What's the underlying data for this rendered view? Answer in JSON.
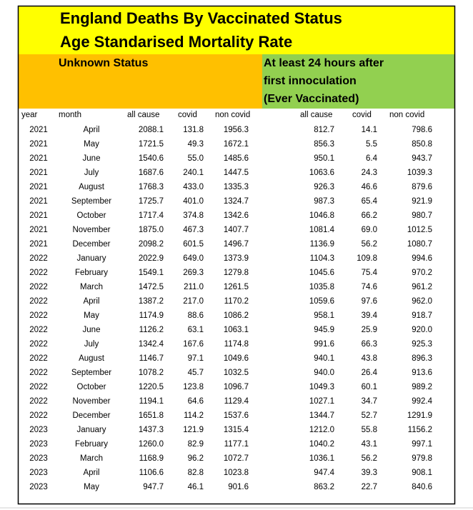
{
  "header": {
    "title": [
      "England Deaths By Vaccinated Status",
      "Age Standarised Mortality Rate"
    ]
  },
  "sections": [
    {
      "lines": [
        "Unknown Status"
      ]
    },
    {
      "lines": [
        "At least 24 hours after",
        "first innoculation",
        "(Ever Vaccinated)"
      ]
    }
  ],
  "table": {
    "columns": [
      "year",
      "month",
      "all cause",
      "covid",
      "non covid",
      "all cause",
      "covid",
      "non covid"
    ],
    "rows": [
      [
        "2021",
        "April",
        "2088.1",
        "131.8",
        "1956.3",
        "812.7",
        "14.1",
        "798.6"
      ],
      [
        "2021",
        "May",
        "1721.5",
        "49.3",
        "1672.1",
        "856.3",
        "5.5",
        "850.8"
      ],
      [
        "2021",
        "June",
        "1540.6",
        "55.0",
        "1485.6",
        "950.1",
        "6.4",
        "943.7"
      ],
      [
        "2021",
        "July",
        "1687.6",
        "240.1",
        "1447.5",
        "1063.6",
        "24.3",
        "1039.3"
      ],
      [
        "2021",
        "August",
        "1768.3",
        "433.0",
        "1335.3",
        "926.3",
        "46.6",
        "879.6"
      ],
      [
        "2021",
        "September",
        "1725.7",
        "401.0",
        "1324.7",
        "987.3",
        "65.4",
        "921.9"
      ],
      [
        "2021",
        "October",
        "1717.4",
        "374.8",
        "1342.6",
        "1046.8",
        "66.2",
        "980.7"
      ],
      [
        "2021",
        "November",
        "1875.0",
        "467.3",
        "1407.7",
        "1081.4",
        "69.0",
        "1012.5"
      ],
      [
        "2021",
        "December",
        "2098.2",
        "601.5",
        "1496.7",
        "1136.9",
        "56.2",
        "1080.7"
      ],
      [
        "2022",
        "January",
        "2022.9",
        "649.0",
        "1373.9",
        "1104.3",
        "109.8",
        "994.6"
      ],
      [
        "2022",
        "February",
        "1549.1",
        "269.3",
        "1279.8",
        "1045.6",
        "75.4",
        "970.2"
      ],
      [
        "2022",
        "March",
        "1472.5",
        "211.0",
        "1261.5",
        "1035.8",
        "74.6",
        "961.2"
      ],
      [
        "2022",
        "April",
        "1387.2",
        "217.0",
        "1170.2",
        "1059.6",
        "97.6",
        "962.0"
      ],
      [
        "2022",
        "May",
        "1174.9",
        "88.6",
        "1086.2",
        "958.1",
        "39.4",
        "918.7"
      ],
      [
        "2022",
        "June",
        "1126.2",
        "63.1",
        "1063.1",
        "945.9",
        "25.9",
        "920.0"
      ],
      [
        "2022",
        "July",
        "1342.4",
        "167.6",
        "1174.8",
        "991.6",
        "66.3",
        "925.3"
      ],
      [
        "2022",
        "August",
        "1146.7",
        "97.1",
        "1049.6",
        "940.1",
        "43.8",
        "896.3"
      ],
      [
        "2022",
        "September",
        "1078.2",
        "45.7",
        "1032.5",
        "940.0",
        "26.4",
        "913.6"
      ],
      [
        "2022",
        "October",
        "1220.5",
        "123.8",
        "1096.7",
        "1049.3",
        "60.1",
        "989.2"
      ],
      [
        "2022",
        "November",
        "1194.1",
        "64.6",
        "1129.4",
        "1027.1",
        "34.7",
        "992.4"
      ],
      [
        "2022",
        "December",
        "1651.8",
        "114.2",
        "1537.6",
        "1344.7",
        "52.7",
        "1291.9"
      ],
      [
        "2023",
        "January",
        "1437.3",
        "121.9",
        "1315.4",
        "1212.0",
        "55.8",
        "1156.2"
      ],
      [
        "2023",
        "February",
        "1260.0",
        "82.9",
        "1177.1",
        "1040.2",
        "43.1",
        "997.1"
      ],
      [
        "2023",
        "March",
        "1168.9",
        "96.2",
        "1072.7",
        "1036.1",
        "56.2",
        "979.8"
      ],
      [
        "2023",
        "April",
        "1106.6",
        "82.8",
        "1023.8",
        "947.4",
        "39.3",
        "908.1"
      ],
      [
        "2023",
        "May",
        "947.7",
        "46.1",
        "901.6",
        "863.2",
        "22.7",
        "840.6"
      ]
    ]
  }
}
